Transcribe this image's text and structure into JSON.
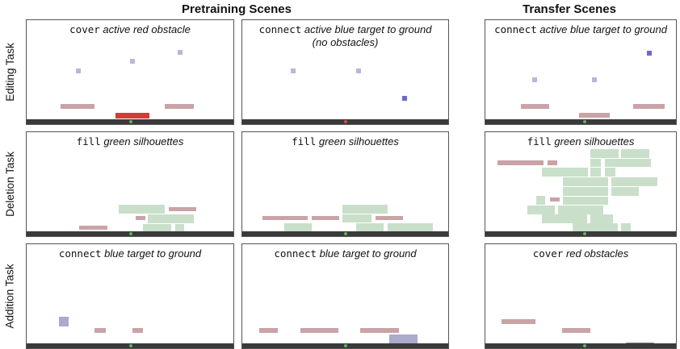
{
  "headers": {
    "pretraining": "Pretraining Scenes",
    "transfer": "Transfer Scenes"
  },
  "rows": [
    {
      "label": "Editing Task"
    },
    {
      "label": "Deletion Task"
    },
    {
      "label": "Addition Task"
    }
  ],
  "panels": [
    {
      "verb": "cover",
      "rest": "active red obstacle",
      "sub": ""
    },
    {
      "verb": "connect",
      "rest": "active blue target to ground",
      "sub": "(no obstacles)"
    },
    {
      "verb": "connect",
      "rest": "active blue target to ground",
      "sub": ""
    },
    {
      "verb": "fill",
      "rest": "green silhouettes",
      "sub": ""
    },
    {
      "verb": "fill",
      "rest": "green silhouettes",
      "sub": ""
    },
    {
      "verb": "fill",
      "rest": "green silhouettes",
      "sub": ""
    },
    {
      "verb": "connect",
      "rest": "blue target to ground",
      "sub": ""
    },
    {
      "verb": "connect",
      "rest": "blue target to ground",
      "sub": ""
    },
    {
      "verb": "cover",
      "rest": "red obstacles",
      "sub": ""
    }
  ],
  "colors": {
    "pink": "#c9a3a6",
    "red": "#d43a3a",
    "blue_faint": "#b7b7dc",
    "blue_active": "#6a6ad2",
    "green": "#c9dfc9",
    "lavender": "#aaaacc",
    "ground": "#3a3a3a",
    "marker_green": "#5fb35f",
    "marker_red": "#d84a4a"
  }
}
